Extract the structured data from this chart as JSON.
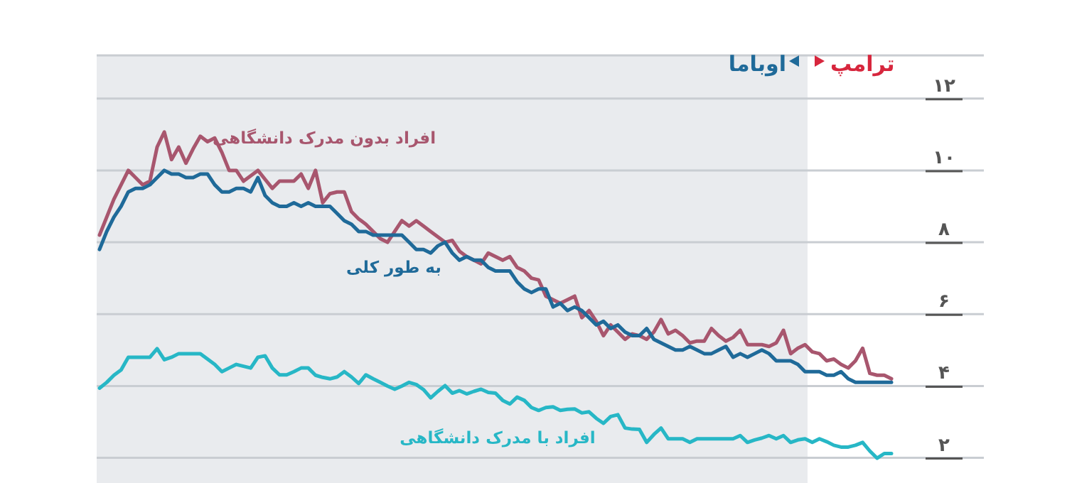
{
  "chart_data": {
    "type": "line",
    "categories": [
      null,
      null,
      null,
      null,
      null,
      null,
      null,
      null,
      null,
      null,
      null,
      null,
      null,
      null,
      null,
      null,
      null,
      null,
      null,
      null,
      null,
      null,
      null,
      null,
      null,
      null,
      null,
      null,
      null,
      null,
      null,
      null,
      null,
      null,
      null,
      null,
      null,
      null,
      null,
      null,
      null,
      null,
      null,
      null,
      null,
      null,
      null,
      null,
      null,
      null,
      null,
      null,
      null,
      null,
      null,
      null,
      null,
      null,
      null,
      null,
      null,
      null,
      null,
      null,
      null,
      null,
      null,
      null,
      null,
      null,
      null,
      null,
      null,
      null,
      null,
      null,
      null,
      null,
      null,
      null,
      null,
      null,
      null,
      null,
      null,
      null,
      null,
      null,
      null,
      null,
      null,
      null,
      null,
      null,
      null,
      null,
      null,
      null,
      null,
      null,
      null,
      null,
      null,
      null,
      null,
      null,
      null,
      null,
      null,
      null,
      null
    ],
    "series": [
      {
        "name": "افراد بدون مدرک دانشگاهی",
        "color": "#a8566e",
        "values": [
          8.2,
          8.7,
          9.2,
          9.6,
          10.0,
          9.8,
          9.6,
          9.7,
          10.65,
          11.07,
          10.3,
          10.65,
          10.2,
          10.6,
          10.95,
          10.8,
          10.9,
          10.5,
          10.0,
          10.0,
          9.7,
          9.85,
          10.0,
          9.75,
          9.5,
          9.7,
          9.7,
          9.7,
          9.9,
          9.5,
          10.0,
          9.1,
          9.35,
          9.4,
          9.4,
          8.85,
          8.65,
          8.5,
          8.3,
          8.1,
          8.0,
          8.3,
          8.6,
          8.45,
          8.6,
          8.45,
          8.3,
          8.15,
          8.0,
          8.05,
          7.75,
          7.6,
          7.5,
          7.4,
          7.7,
          7.6,
          7.5,
          7.6,
          7.3,
          7.2,
          7.0,
          6.95,
          6.5,
          6.4,
          6.3,
          6.4,
          6.5,
          5.9,
          6.1,
          5.8,
          5.4,
          5.7,
          5.5,
          5.3,
          5.45,
          5.4,
          5.3,
          5.5,
          5.85,
          5.45,
          5.55,
          5.4,
          5.2,
          5.25,
          5.25,
          5.6,
          5.4,
          5.25,
          5.35,
          5.55,
          5.15,
          5.15,
          5.15,
          5.1,
          5.2,
          5.55,
          4.9,
          5.05,
          5.15,
          4.95,
          4.9,
          4.7,
          4.75,
          4.6,
          4.5,
          4.7,
          5.05,
          4.35,
          4.3,
          4.3,
          4.2
        ]
      },
      {
        "name": "به طور کلی",
        "color": "#1f6a99",
        "values": [
          7.8,
          8.3,
          8.7,
          9.0,
          9.4,
          9.5,
          9.5,
          9.6,
          9.8,
          10.0,
          9.9,
          9.9,
          9.8,
          9.8,
          9.9,
          9.9,
          9.6,
          9.4,
          9.4,
          9.5,
          9.5,
          9.4,
          9.8,
          9.3,
          9.1,
          9.0,
          9.0,
          9.1,
          9.0,
          9.1,
          9.0,
          9.0,
          9.0,
          8.8,
          8.6,
          8.5,
          8.3,
          8.3,
          8.2,
          8.2,
          8.2,
          8.2,
          8.2,
          8.0,
          7.8,
          7.8,
          7.7,
          7.9,
          8.0,
          7.7,
          7.5,
          7.6,
          7.5,
          7.5,
          7.3,
          7.2,
          7.2,
          7.2,
          6.9,
          6.7,
          6.6,
          6.7,
          6.7,
          6.2,
          6.3,
          6.1,
          6.2,
          6.1,
          5.9,
          5.7,
          5.8,
          5.6,
          5.7,
          5.5,
          5.4,
          5.4,
          5.6,
          5.3,
          5.2,
          5.1,
          5.0,
          5.0,
          5.1,
          5.0,
          4.9,
          4.9,
          5.0,
          5.1,
          4.8,
          4.9,
          4.8,
          4.9,
          5.0,
          4.9,
          4.7,
          4.7,
          4.7,
          4.6,
          4.4,
          4.4,
          4.4,
          4.3,
          4.3,
          4.4,
          4.2,
          4.1,
          4.1,
          4.1,
          4.1,
          4.1,
          4.1
        ]
      },
      {
        "name": "افراد با مدرک دانشگاهی",
        "color": "#27b7c6",
        "values": [
          3.94,
          4.1,
          4.3,
          4.45,
          4.8,
          4.8,
          4.8,
          4.8,
          5.04,
          4.73,
          4.8,
          4.9,
          4.9,
          4.9,
          4.9,
          4.75,
          4.6,
          4.4,
          4.5,
          4.6,
          4.55,
          4.5,
          4.8,
          4.84,
          4.5,
          4.31,
          4.31,
          4.4,
          4.5,
          4.5,
          4.3,
          4.24,
          4.2,
          4.25,
          4.4,
          4.25,
          4.07,
          4.31,
          4.2,
          4.1,
          4.0,
          3.91,
          4.0,
          4.1,
          4.04,
          3.9,
          3.67,
          3.85,
          4.01,
          3.8,
          3.87,
          3.78,
          3.85,
          3.91,
          3.82,
          3.8,
          3.6,
          3.5,
          3.69,
          3.6,
          3.4,
          3.32,
          3.4,
          3.42,
          3.32,
          3.35,
          3.36,
          3.25,
          3.28,
          3.1,
          2.96,
          3.15,
          3.2,
          2.83,
          2.8,
          2.79,
          2.43,
          2.65,
          2.83,
          2.53,
          2.53,
          2.53,
          2.43,
          2.53,
          2.53,
          2.53,
          2.53,
          2.53,
          2.53,
          2.62,
          2.43,
          2.5,
          2.55,
          2.62,
          2.53,
          2.62,
          2.43,
          2.5,
          2.53,
          2.43,
          2.53,
          2.45,
          2.35,
          2.3,
          2.3,
          2.35,
          2.43,
          2.19,
          1.99,
          2.12,
          2.12
        ]
      }
    ],
    "ylim": [
      1.3,
      13.2
    ],
    "yticks": [
      {
        "value": 2,
        "label": "۲"
      },
      {
        "value": 4,
        "label": "۴"
      },
      {
        "value": 6,
        "label": "۶"
      },
      {
        "value": 8,
        "label": "۸"
      },
      {
        "value": 10,
        "label": "۱۰"
      },
      {
        "value": 12,
        "label": "۱۲"
      },
      {
        "value": 13.2,
        "label": null
      }
    ],
    "grid": "y",
    "tick_labels": "y",
    "annotations": [
      "اوباما",
      "ترامپ"
    ]
  }
}
